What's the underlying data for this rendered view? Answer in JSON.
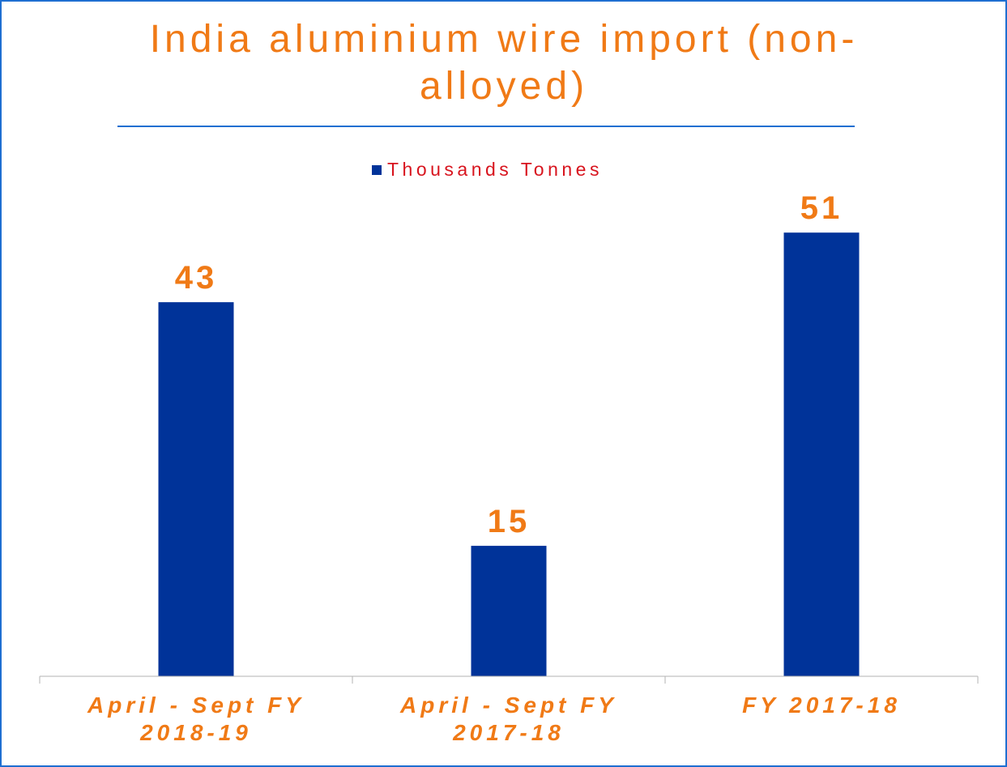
{
  "chart_data": {
    "type": "bar",
    "title": "India aluminium wire import (non-alloyed)",
    "categories": [
      [
        "April - Sept FY",
        "2018-19"
      ],
      [
        "April - Sept FY",
        "2017-18"
      ],
      [
        "FY 2017-18"
      ]
    ],
    "series": [
      {
        "name": "Thousands Tonnes",
        "values": [
          43,
          15,
          51
        ],
        "color": "#003399"
      }
    ],
    "data_labels": [
      "43",
      "15",
      "51"
    ],
    "ylim": [
      0,
      58
    ],
    "xlabel": "",
    "ylabel": "",
    "grid": false,
    "legend_position": "top"
  },
  "colors": {
    "accent": "#f07a16",
    "bar": "#003399",
    "legend_text": "#d8141e",
    "frame": "#1f6fd1"
  }
}
